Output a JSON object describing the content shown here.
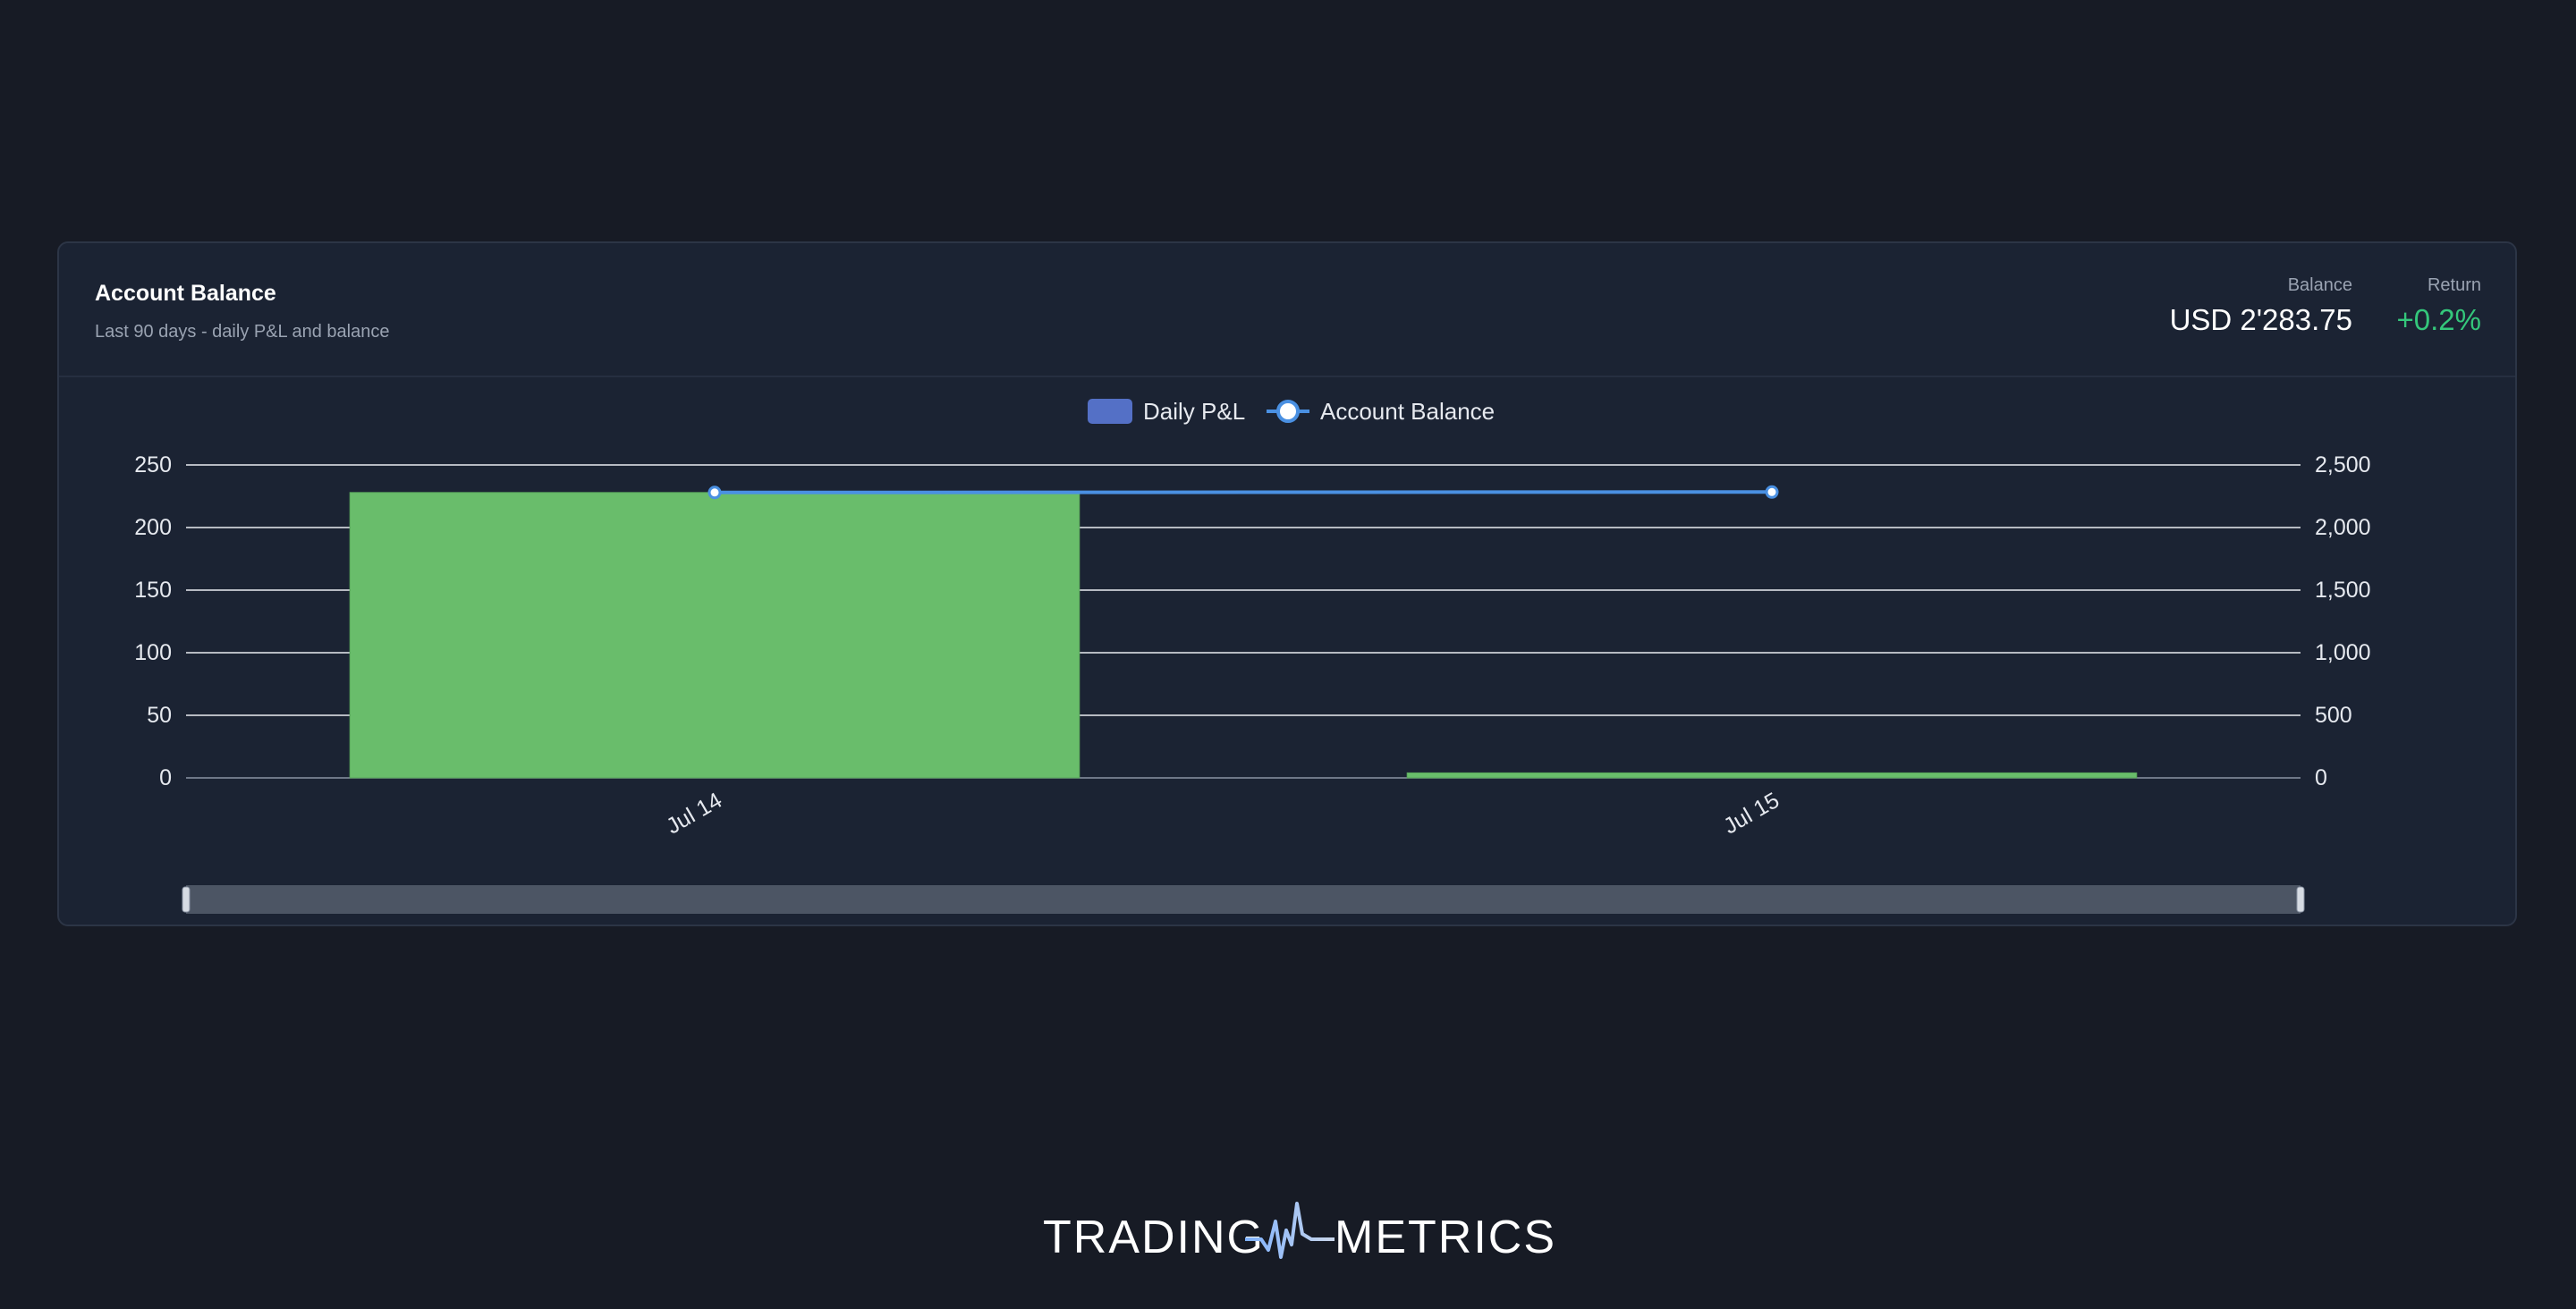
{
  "card": {
    "title": "Account Balance",
    "subtitle": "Last 90 days - daily P&L and balance"
  },
  "stats": {
    "balance": {
      "label": "Balance",
      "value": "USD 2'283.75"
    },
    "return": {
      "label": "Return",
      "value": "+0.2%"
    }
  },
  "chart_data": {
    "type": "bar",
    "categories": [
      "Jul 14",
      "Jul 15"
    ],
    "series": [
      {
        "name": "Daily P&L",
        "kind": "bar",
        "axis": "left",
        "values": [
          228,
          4
        ],
        "color": "#69bd6b",
        "legend_color": "#5470c6"
      },
      {
        "name": "Account Balance",
        "kind": "line",
        "axis": "right",
        "values": [
          2280,
          2283.75
        ],
        "color": "#4a90e2"
      }
    ],
    "left_axis": {
      "min": 0,
      "max": 250,
      "ticks": [
        0,
        50,
        100,
        150,
        200,
        250
      ],
      "tick_labels": [
        "0",
        "50",
        "100",
        "150",
        "200",
        "250"
      ]
    },
    "right_axis": {
      "min": 0,
      "max": 2500,
      "ticks": [
        0,
        500,
        1000,
        1500,
        2000,
        2500
      ],
      "tick_labels": [
        "0",
        "500",
        "1,000",
        "1,500",
        "2,000",
        "2,500"
      ]
    },
    "grid": true,
    "legend_position": "top-center",
    "zoom_slider": {
      "start": 0,
      "end": 1
    }
  },
  "logo": {
    "left_text": "TRADING",
    "right_text": "METRICS"
  },
  "colors": {
    "background": "#171b25",
    "card": "#1b2333",
    "positive": "#34c77b",
    "bar": "#69bd6b",
    "line": "#4a90e2"
  }
}
